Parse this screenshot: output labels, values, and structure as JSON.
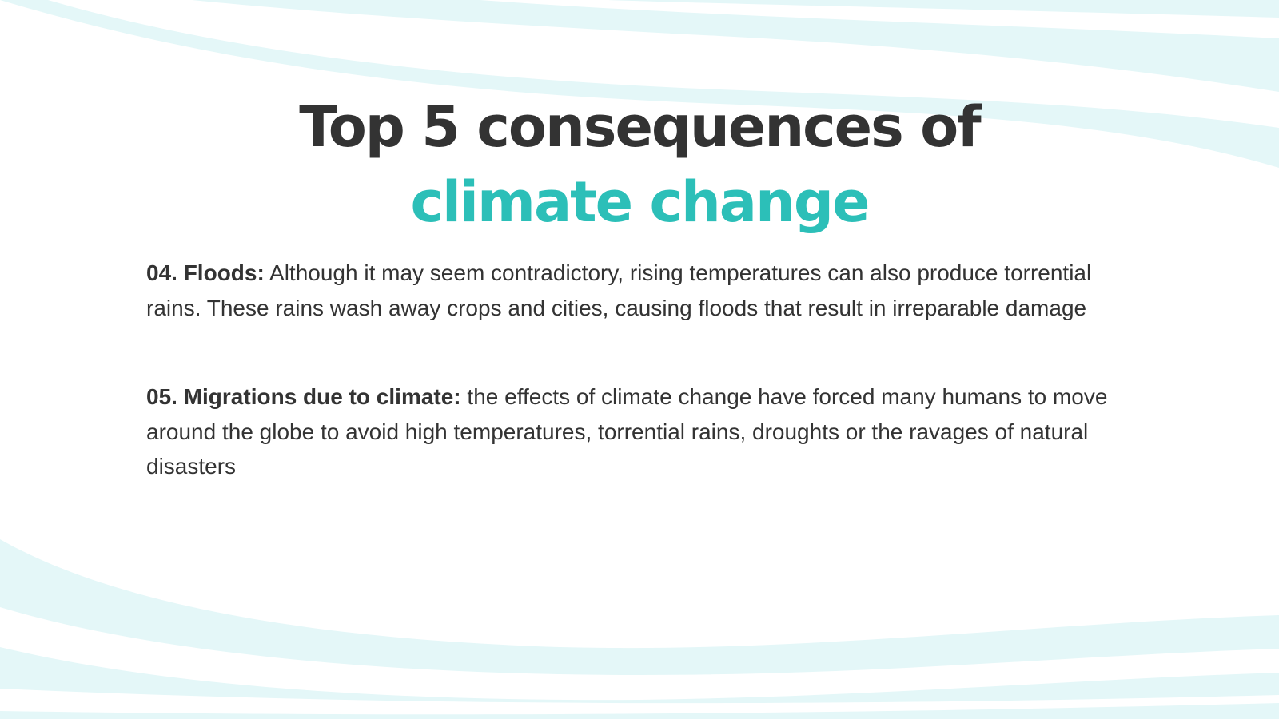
{
  "title": {
    "line1": "Top 5 consequences of",
    "line2": "climate change"
  },
  "items": [
    {
      "term": "04. Floods:",
      "text": " Although it may seem contradictory, rising temperatures can also produce torrential rains. These rains wash away crops and cities, causing floods that result in irreparable damage"
    },
    {
      "term": "05. Migrations due to climate:",
      "text": " the effects of climate change have forced many humans to move around the globe to avoid high temperatures, torrential rains, droughts or the ravages of natural disasters"
    }
  ],
  "colors": {
    "heading": "#333333",
    "accent": "#2cbfb8",
    "wave": "#e3f7f8",
    "text": "#333333"
  }
}
